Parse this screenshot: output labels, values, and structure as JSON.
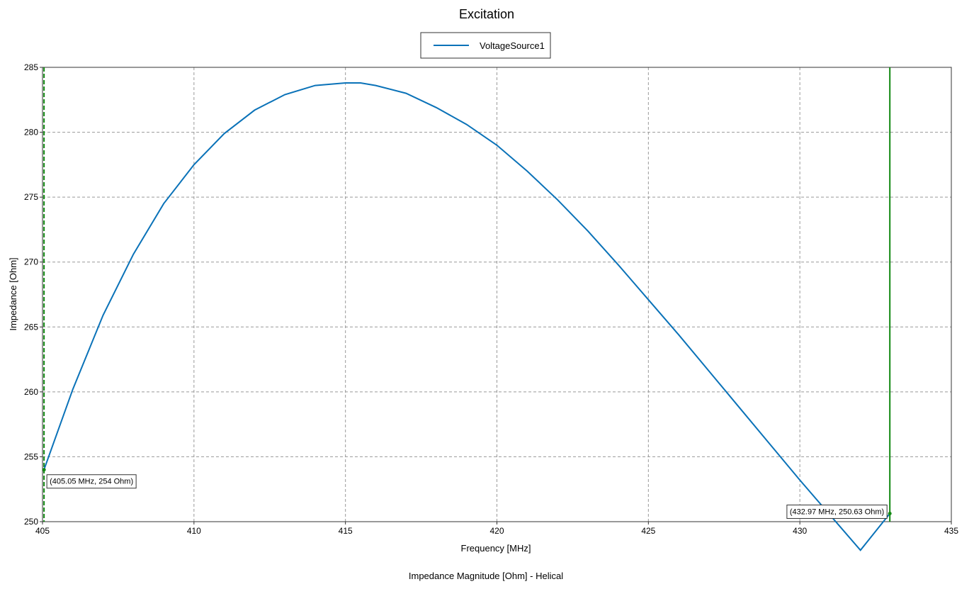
{
  "chart_data": {
    "type": "line",
    "title": "Excitation",
    "xlabel": "Frequency [MHz]",
    "ylabel": "Impedance [Ohm]",
    "footer": "Impedance Magnitude [Ohm] - Helical",
    "xlim": [
      405,
      435
    ],
    "ylim": [
      250,
      285
    ],
    "xticks": [
      405,
      410,
      415,
      420,
      425,
      430,
      435
    ],
    "yticks": [
      250,
      255,
      260,
      265,
      270,
      275,
      280,
      285
    ],
    "grid": true,
    "legend_position": "top-center",
    "series": [
      {
        "name": "VoltageSource1",
        "color": "#0a72b8",
        "x": [
          405.05,
          406,
          407,
          408,
          409,
          410,
          411,
          412,
          413,
          414,
          415,
          415.5,
          416,
          417,
          418,
          419,
          420,
          421,
          422,
          423,
          424,
          425,
          426,
          427,
          428,
          429,
          430,
          431,
          432,
          432.97
        ],
        "y": [
          254.0,
          260.2,
          265.9,
          270.6,
          274.5,
          277.5,
          279.9,
          281.7,
          282.9,
          283.6,
          283.8,
          283.8,
          283.6,
          283.0,
          281.9,
          280.6,
          279.0,
          277.0,
          274.8,
          272.4,
          269.8,
          267.1,
          264.4,
          261.6,
          258.8,
          256.0,
          253.2,
          250.5,
          247.8,
          250.63
        ]
      }
    ],
    "markers": [
      {
        "x": 405.05,
        "y": 254,
        "label": "(405.05 MHz, 254 Ohm)",
        "color": "#118811",
        "style": "dashed"
      },
      {
        "x": 432.97,
        "y": 250.63,
        "label": "(432.97 MHz, 250.63 Ohm)",
        "color": "#118811",
        "style": "solid"
      }
    ]
  }
}
